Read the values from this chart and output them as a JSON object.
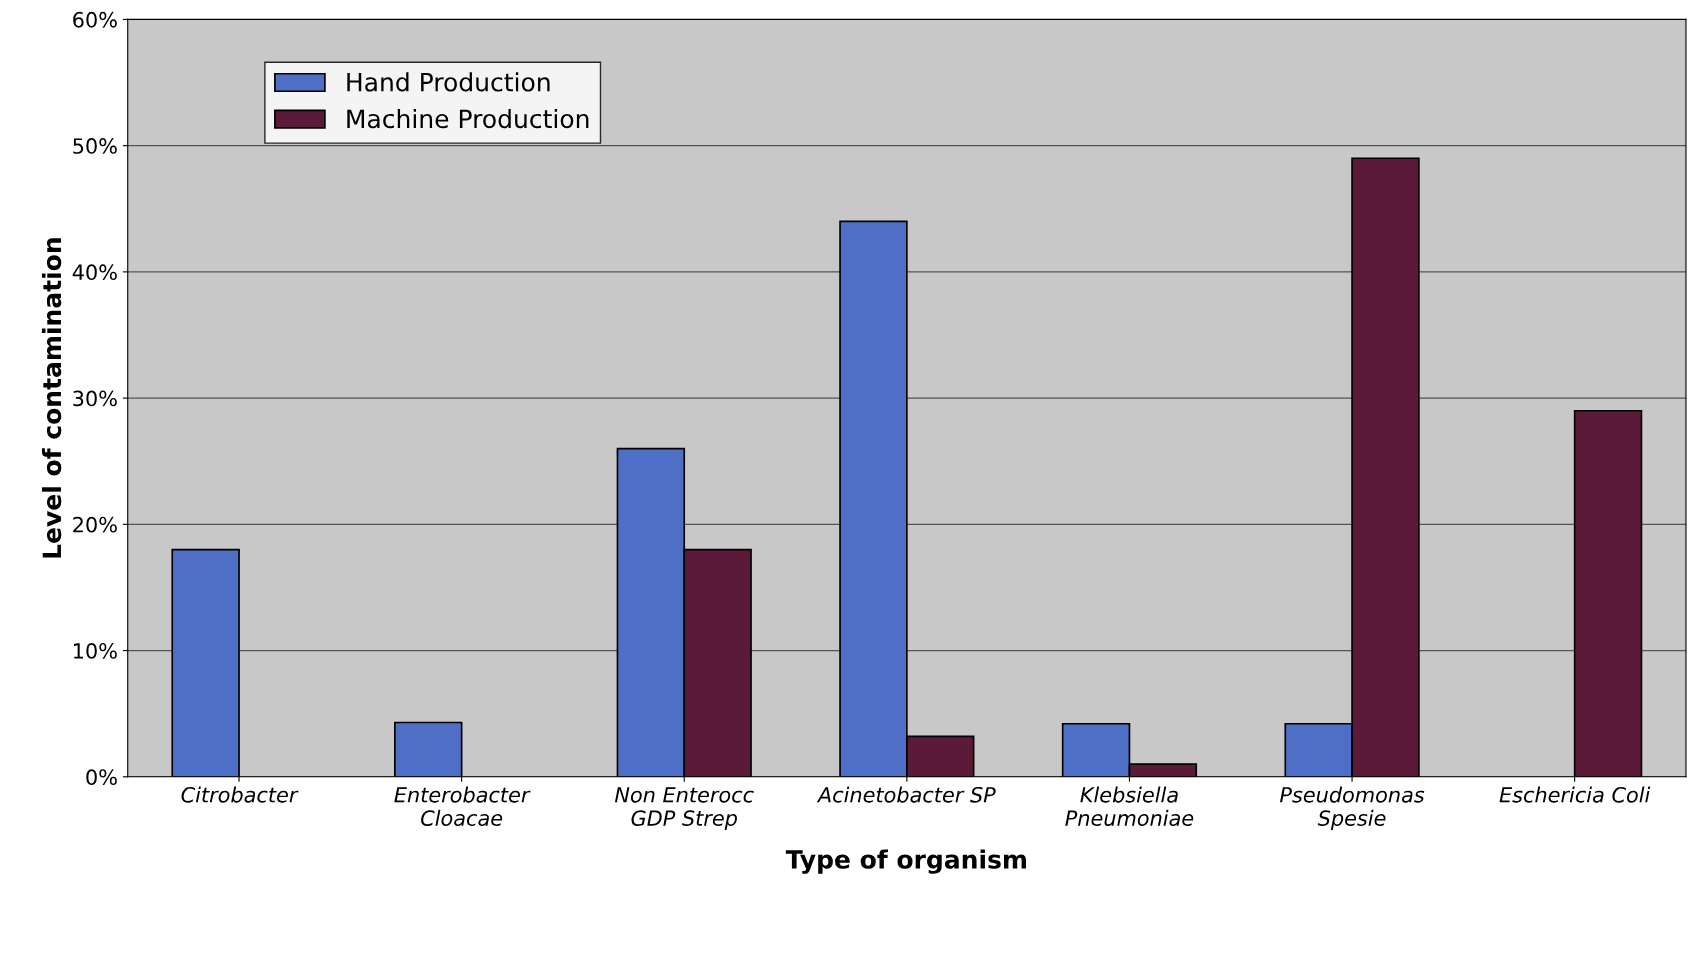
{
  "chart_data": {
    "type": "bar",
    "xlabel": "Type of organism",
    "ylabel": "Level of contamination",
    "categories": [
      "Citrobacter",
      "Enterobacter\nCloacae",
      "Non Enterocc\nGDP Strep",
      "Acinetobacter SP",
      "Klebsiella\nPneumoniae",
      "Pseudomonas\nSpesie",
      "Eschericia Coli"
    ],
    "series": [
      {
        "name": "Hand Production",
        "color": "#4f6fc6",
        "values": [
          18,
          4.3,
          26,
          44,
          4.2,
          4.2,
          null
        ]
      },
      {
        "name": "Machine Production",
        "color": "#5c1a3a",
        "values": [
          null,
          null,
          18,
          3.2,
          1,
          49,
          29
        ]
      }
    ],
    "ylim": [
      0,
      60
    ],
    "yticks": [
      {
        "value": 0,
        "label": "0%"
      },
      {
        "value": 10,
        "label": "10%"
      },
      {
        "value": 20,
        "label": "20%"
      },
      {
        "value": 30,
        "label": "30%"
      },
      {
        "value": 40,
        "label": "40%"
      },
      {
        "value": 50,
        "label": "50%"
      },
      {
        "value": 60,
        "label": "60%"
      }
    ],
    "grid": "y",
    "legend": "top left"
  }
}
